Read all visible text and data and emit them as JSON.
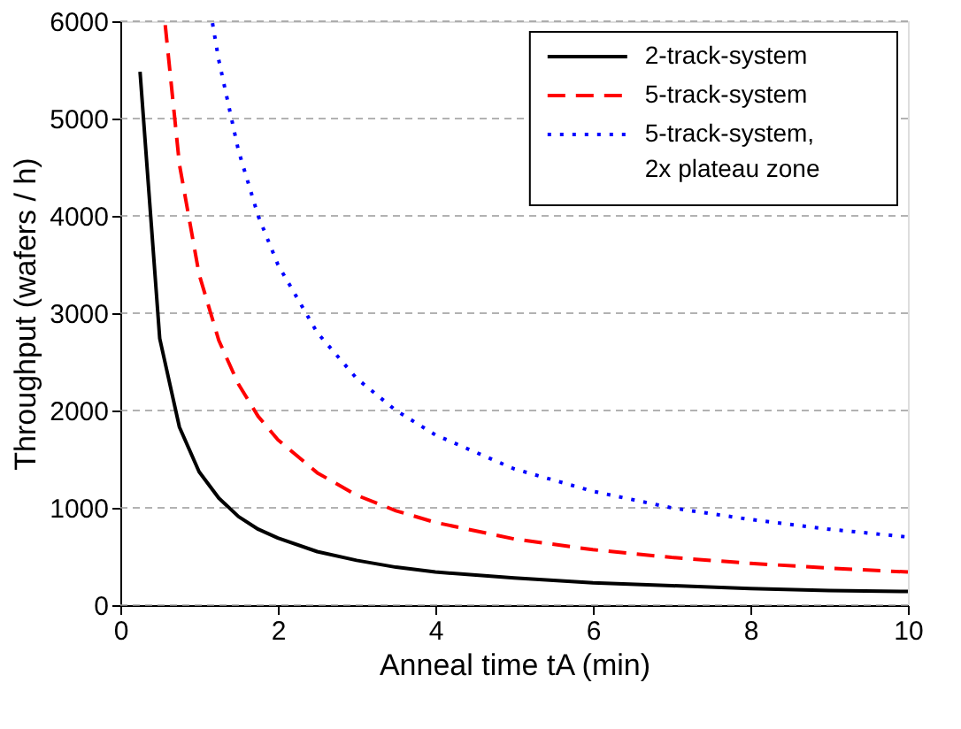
{
  "chart_data": {
    "type": "line",
    "xlabel": "Anneal time tA (min)",
    "ylabel": "Throughput (wafers / h)",
    "xlim": [
      0,
      10
    ],
    "xticks": [
      0,
      2,
      4,
      6,
      8,
      10
    ],
    "ylim": [
      0,
      6000
    ],
    "yticks": [
      0,
      1000,
      2000,
      3000,
      4000,
      5000,
      6000
    ],
    "grid": "y",
    "legend": "top right",
    "marker": "none",
    "series": [
      {
        "name": "2-track-system",
        "color": "#000000",
        "line_style": "solid",
        "x": [
          0.25,
          0.5,
          0.75,
          1,
          1.25,
          1.5,
          1.75,
          2,
          2.5,
          3,
          3.5,
          4,
          5,
          6,
          7,
          8,
          9,
          10
        ],
        "values": [
          5480,
          2740,
          1830,
          1370,
          1100,
          910,
          780,
          690,
          550,
          460,
          390,
          340,
          280,
          230,
          200,
          170,
          150,
          140
        ]
      },
      {
        "name": "5-track-system",
        "color": "#ff0000",
        "line_style": "dashed",
        "x": [
          0.57,
          0.75,
          1,
          1.25,
          1.5,
          1.75,
          2,
          2.5,
          3,
          3.5,
          4,
          5,
          6,
          7,
          8,
          9,
          10
        ],
        "values": [
          5960,
          4530,
          3400,
          2720,
          2270,
          1940,
          1700,
          1360,
          1130,
          970,
          850,
          680,
          570,
          490,
          430,
          380,
          340
        ]
      },
      {
        "name": "5-track-system,\n2x plateau zone",
        "color": "#0000ff",
        "line_style": "dotted",
        "x": [
          1.17,
          1.25,
          1.5,
          1.75,
          2,
          2.5,
          3,
          3.5,
          4,
          5,
          6,
          7,
          8,
          9,
          10
        ],
        "values": [
          5980,
          5600,
          4670,
          4000,
          3500,
          2800,
          2330,
          2000,
          1750,
          1400,
          1170,
          1000,
          880,
          780,
          700
        ]
      }
    ]
  }
}
